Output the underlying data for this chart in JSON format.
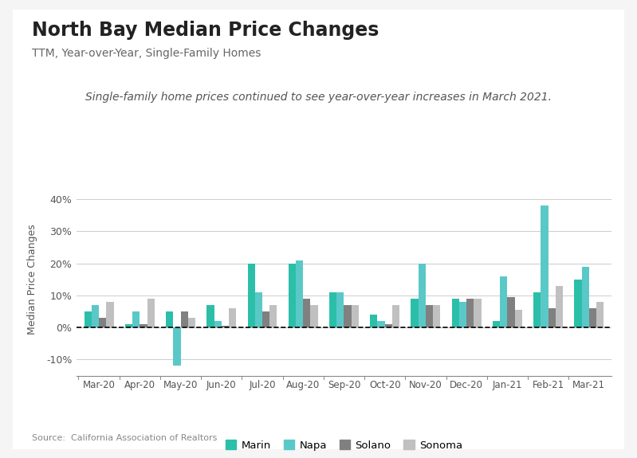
{
  "title": "North Bay Median Price Changes",
  "subtitle": "TTM, Year-over-Year, Single-Family Homes",
  "annotation": "Single-family home prices continued to see year-over-year increases in March 2021.",
  "source": "Source:  California Association of Realtors",
  "ylabel": "Median Price Changes",
  "categories": [
    "Mar-20",
    "Apr-20",
    "May-20",
    "Jun-20",
    "Jul-20",
    "Aug-20",
    "Sep-20",
    "Oct-20",
    "Nov-20",
    "Dec-20",
    "Jan-21",
    "Feb-21",
    "Mar-21"
  ],
  "series": {
    "Marin": [
      5.0,
      1.0,
      5.0,
      7.0,
      20.0,
      20.0,
      11.0,
      4.0,
      9.0,
      9.0,
      2.0,
      11.0,
      15.0
    ],
    "Napa": [
      7.0,
      5.0,
      -12.0,
      2.0,
      11.0,
      21.0,
      11.0,
      2.0,
      20.0,
      8.0,
      16.0,
      38.0,
      19.0
    ],
    "Solano": [
      3.0,
      1.0,
      5.0,
      0.5,
      5.0,
      9.0,
      7.0,
      1.0,
      7.0,
      9.0,
      9.5,
      6.0,
      6.0
    ],
    "Sonoma": [
      8.0,
      9.0,
      3.0,
      6.0,
      7.0,
      7.0,
      7.0,
      7.0,
      7.0,
      9.0,
      5.5,
      13.0,
      8.0
    ]
  },
  "colors": {
    "Marin": "#2bbfaa",
    "Napa": "#5bc8c8",
    "Solano": "#808080",
    "Sonoma": "#c0c0c0"
  },
  "ylim": [
    -15,
    45
  ],
  "yticks": [
    -10,
    0,
    10,
    20,
    30,
    40
  ],
  "ytick_labels": [
    "-10%",
    "0%",
    "10%",
    "20%",
    "30%",
    "40%"
  ],
  "background_color": "#ffffff",
  "outer_bg": "#f5f5f5",
  "title_fontsize": 17,
  "subtitle_fontsize": 10,
  "annotation_fontsize": 10,
  "source_fontsize": 8
}
